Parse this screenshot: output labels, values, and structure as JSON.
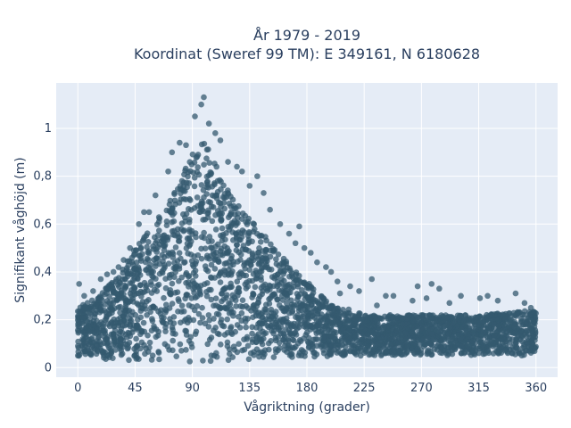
{
  "chart_data": {
    "type": "scatter",
    "title": "År 1979 - 2019",
    "subtitle": "Koordinat (Sweref 99 TM): E 349161, N 6180628",
    "xlabel": "Vågriktning (grader)",
    "ylabel": "Signifikant våghöjd (m)",
    "xlim": [
      -17,
      377
    ],
    "ylim": [
      -0.04,
      1.19
    ],
    "x_ticks": [
      0,
      45,
      90,
      135,
      180,
      225,
      270,
      315,
      360
    ],
    "y_ticks": [
      0,
      0.2,
      0.4,
      0.6,
      0.8,
      1
    ],
    "x_tick_labels": [
      "0",
      "45",
      "90",
      "135",
      "180",
      "225",
      "270",
      "315",
      "360"
    ],
    "y_tick_labels": [
      "0",
      "0,2",
      "0,4",
      "0,6",
      "0,8",
      "1"
    ],
    "grid": true,
    "series": [
      {
        "color": "#34596f",
        "opacity": 0.75,
        "envelope_upper": [
          [
            0,
            0.25
          ],
          [
            15,
            0.3
          ],
          [
            30,
            0.37
          ],
          [
            45,
            0.5
          ],
          [
            60,
            0.6
          ],
          [
            75,
            0.72
          ],
          [
            90,
            0.9
          ],
          [
            100,
            0.95
          ],
          [
            110,
            0.85
          ],
          [
            120,
            0.72
          ],
          [
            135,
            0.62
          ],
          [
            150,
            0.54
          ],
          [
            165,
            0.44
          ],
          [
            180,
            0.36
          ],
          [
            195,
            0.28
          ],
          [
            210,
            0.25
          ],
          [
            225,
            0.22
          ],
          [
            270,
            0.22
          ],
          [
            315,
            0.22
          ],
          [
            360,
            0.24
          ]
        ],
        "envelope_lower": [
          [
            0,
            0.04
          ],
          [
            45,
            0.03
          ],
          [
            90,
            0.02
          ],
          [
            135,
            0.03
          ],
          [
            180,
            0.04
          ],
          [
            225,
            0.05
          ],
          [
            270,
            0.05
          ],
          [
            315,
            0.05
          ],
          [
            360,
            0.05
          ]
        ],
        "outliers": [
          {
            "x": 99,
            "y": 1.13
          },
          {
            "x": 97,
            "y": 1.1
          },
          {
            "x": 92,
            "y": 1.05
          },
          {
            "x": 103,
            "y": 1.02
          },
          {
            "x": 108,
            "y": 0.98
          },
          {
            "x": 112,
            "y": 0.95
          },
          {
            "x": 80,
            "y": 0.94
          },
          {
            "x": 85,
            "y": 0.93
          },
          {
            "x": 74,
            "y": 0.9
          },
          {
            "x": 118,
            "y": 0.86
          },
          {
            "x": 125,
            "y": 0.84
          },
          {
            "x": 129,
            "y": 0.82
          },
          {
            "x": 141,
            "y": 0.8
          },
          {
            "x": 135,
            "y": 0.76
          },
          {
            "x": 71,
            "y": 0.82
          },
          {
            "x": 146,
            "y": 0.73
          },
          {
            "x": 61,
            "y": 0.72
          },
          {
            "x": 56,
            "y": 0.65
          },
          {
            "x": 52,
            "y": 0.65
          },
          {
            "x": 48,
            "y": 0.6
          },
          {
            "x": 151,
            "y": 0.66
          },
          {
            "x": 159,
            "y": 0.6
          },
          {
            "x": 166,
            "y": 0.56
          },
          {
            "x": 174,
            "y": 0.59
          },
          {
            "x": 171,
            "y": 0.52
          },
          {
            "x": 178,
            "y": 0.5
          },
          {
            "x": 183,
            "y": 0.48
          },
          {
            "x": 188,
            "y": 0.44
          },
          {
            "x": 195,
            "y": 0.42
          },
          {
            "x": 199,
            "y": 0.4
          },
          {
            "x": 204,
            "y": 0.36
          },
          {
            "x": 41,
            "y": 0.5
          },
          {
            "x": 36,
            "y": 0.45
          },
          {
            "x": 28,
            "y": 0.4
          },
          {
            "x": 23,
            "y": 0.39
          },
          {
            "x": 32,
            "y": 0.42
          },
          {
            "x": 1,
            "y": 0.35
          },
          {
            "x": 5,
            "y": 0.3
          },
          {
            "x": 12,
            "y": 0.32
          },
          {
            "x": 18,
            "y": 0.37
          },
          {
            "x": 214,
            "y": 0.34
          },
          {
            "x": 221,
            "y": 0.32
          },
          {
            "x": 231,
            "y": 0.37
          },
          {
            "x": 242,
            "y": 0.3
          },
          {
            "x": 248,
            "y": 0.3
          },
          {
            "x": 263,
            "y": 0.28
          },
          {
            "x": 267,
            "y": 0.34
          },
          {
            "x": 278,
            "y": 0.35
          },
          {
            "x": 284,
            "y": 0.33
          },
          {
            "x": 274,
            "y": 0.29
          },
          {
            "x": 301,
            "y": 0.3
          },
          {
            "x": 316,
            "y": 0.29
          },
          {
            "x": 322,
            "y": 0.3
          },
          {
            "x": 330,
            "y": 0.28
          },
          {
            "x": 344,
            "y": 0.31
          },
          {
            "x": 351,
            "y": 0.27
          },
          {
            "x": 356,
            "y": 0.25
          },
          {
            "x": 292,
            "y": 0.27
          },
          {
            "x": 235,
            "y": 0.26
          },
          {
            "x": 206,
            "y": 0.31
          }
        ]
      }
    ]
  }
}
